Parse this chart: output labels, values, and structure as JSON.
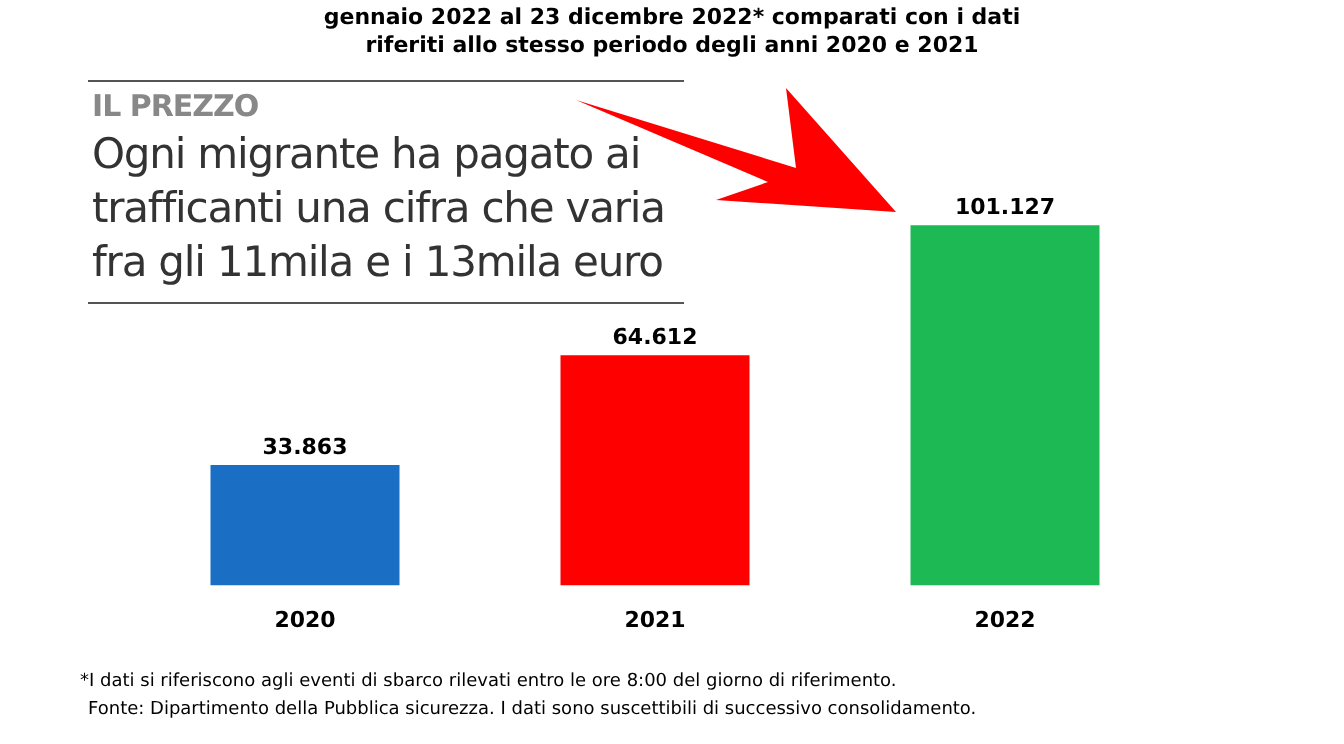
{
  "chart_data": {
    "type": "bar",
    "title": "gennaio 2022 al 23 dicembre 2022* comparati con i dati riferiti allo stesso periodo degli anni 2020 e 2021",
    "categories": [
      "2020",
      "2021",
      "2022"
    ],
    "values": [
      33863,
      64612,
      101127
    ],
    "colors": [
      "#1a6fc4",
      "#fe0000",
      "#1db954"
    ],
    "value_labels": [
      "33.863",
      "64.612",
      "101.127"
    ],
    "grid": false,
    "legend": false,
    "tick_labels": "x",
    "annotations": [
      "IL PREZZO",
      "Ogni migrante ha pagato ai trafficanti una cifra che varia fra gli 11mila e i 13mila euro",
      "*I dati si riferiscono agli eventi di sbarco rilevati entro le ore 8:00 del giorno di riferimento.",
      "Fonte: Dipartimento della Pubblica sicurezza. I dati sono suscettibili di successivo consolidamento."
    ]
  }
}
